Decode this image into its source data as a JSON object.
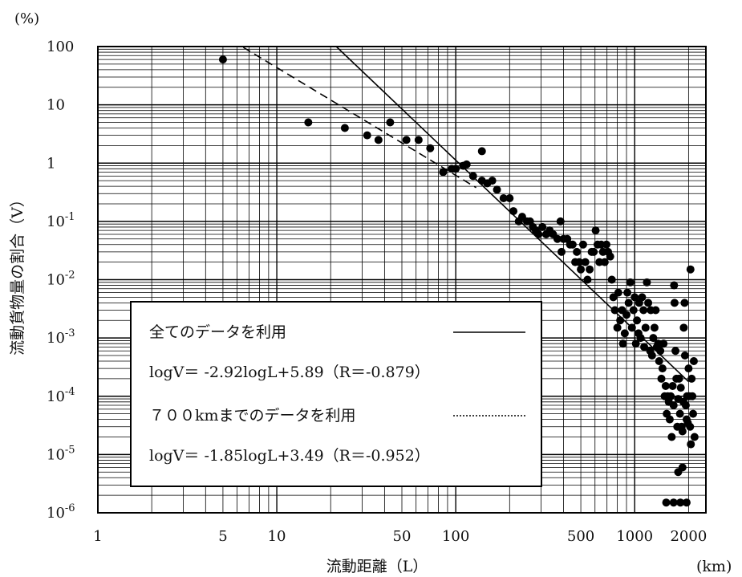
{
  "chart_data": {
    "type": "scatter",
    "x_scale": "log",
    "y_scale": "log",
    "xlim": [
      1,
      2500
    ],
    "ylim": [
      1e-06,
      100
    ],
    "grid": true,
    "xlabel": "流動距離（L）",
    "x_unit": "(km)",
    "ylabel": "流動貨物量の割合（V）",
    "y_unit": "(%)",
    "x_ticks": [
      {
        "value": 1,
        "label": "1"
      },
      {
        "value": 5,
        "label": "5"
      },
      {
        "value": 10,
        "label": "10"
      },
      {
        "value": 50,
        "label": "50"
      },
      {
        "value": 100,
        "label": "100"
      },
      {
        "value": 500,
        "label": "500"
      },
      {
        "value": 1000,
        "label": "1000"
      },
      {
        "value": 2000,
        "label": "2000"
      }
    ],
    "y_ticks": [
      {
        "value": 100,
        "base": "100",
        "exp": ""
      },
      {
        "value": 10,
        "base": "10",
        "exp": ""
      },
      {
        "value": 1,
        "base": "1",
        "exp": ""
      },
      {
        "value": 0.1,
        "base": "10",
        "exp": "-1"
      },
      {
        "value": 0.01,
        "base": "10",
        "exp": "-2"
      },
      {
        "value": 0.001,
        "base": "10",
        "exp": "-3"
      },
      {
        "value": 0.0001,
        "base": "10",
        "exp": "-4"
      },
      {
        "value": 1e-05,
        "base": "10",
        "exp": "-5"
      },
      {
        "value": 1e-06,
        "base": "10",
        "exp": "-6"
      }
    ],
    "legend": {
      "placement": "bottom-left",
      "line1_label": "全てのデータを利用",
      "line1_equation": "logV＝ -2.92logL+5.89（R＝-0.879）",
      "line2_label": "７００kmまでのデータを利用",
      "line2_equation": "logV＝ -1.85logL+3.49（R＝-0.952）"
    },
    "fits": [
      {
        "style": "solid",
        "slope": -2.92,
        "intercept": 5.89,
        "x_range": [
          21,
          2000
        ]
      },
      {
        "style": "dashed",
        "slope": -1.85,
        "intercept": 3.49,
        "x_range": [
          6.5,
          130
        ]
      }
    ],
    "points": [
      [
        5,
        60
      ],
      [
        15,
        5
      ],
      [
        24,
        4
      ],
      [
        32,
        3
      ],
      [
        37,
        2.5
      ],
      [
        43,
        5
      ],
      [
        53,
        2.5
      ],
      [
        62,
        2.5
      ],
      [
        72,
        1.8
      ],
      [
        85,
        0.7
      ],
      [
        95,
        0.8
      ],
      [
        100,
        0.8
      ],
      [
        110,
        0.9
      ],
      [
        115,
        0.95
      ],
      [
        125,
        0.6
      ],
      [
        140,
        0.5
      ],
      [
        140,
        1.6
      ],
      [
        150,
        0.45
      ],
      [
        160,
        0.5
      ],
      [
        170,
        0.35
      ],
      [
        185,
        0.25
      ],
      [
        200,
        0.25
      ],
      [
        210,
        0.15
      ],
      [
        225,
        0.1
      ],
      [
        235,
        0.12
      ],
      [
        250,
        0.1
      ],
      [
        260,
        0.1
      ],
      [
        270,
        0.08
      ],
      [
        280,
        0.07
      ],
      [
        290,
        0.06
      ],
      [
        305,
        0.08
      ],
      [
        320,
        0.06
      ],
      [
        335,
        0.07
      ],
      [
        350,
        0.06
      ],
      [
        370,
        0.05
      ],
      [
        385,
        0.1
      ],
      [
        390,
        0.03
      ],
      [
        400,
        0.05
      ],
      [
        420,
        0.05
      ],
      [
        435,
        0.04
      ],
      [
        450,
        0.04
      ],
      [
        465,
        0.02
      ],
      [
        475,
        0.03
      ],
      [
        490,
        0.02
      ],
      [
        500,
        0.015
      ],
      [
        515,
        0.04
      ],
      [
        530,
        0.02
      ],
      [
        545,
        0.01
      ],
      [
        560,
        0.015
      ],
      [
        575,
        0.03
      ],
      [
        590,
        0.03
      ],
      [
        605,
        0.07
      ],
      [
        620,
        0.04
      ],
      [
        635,
        0.02
      ],
      [
        650,
        0.04
      ],
      [
        665,
        0.03
      ],
      [
        680,
        0.02
      ],
      [
        695,
        0.04
      ],
      [
        710,
        0.03
      ],
      [
        730,
        0.025
      ],
      [
        745,
        0.01
      ],
      [
        760,
        0.005
      ],
      [
        775,
        0.003
      ],
      [
        800,
        0.0015
      ],
      [
        810,
        0.006
      ],
      [
        830,
        0.002
      ],
      [
        850,
        0.003
      ],
      [
        860,
        0.0008
      ],
      [
        880,
        0.0012
      ],
      [
        900,
        0.0025
      ],
      [
        910,
        0.006
      ],
      [
        925,
        0.004
      ],
      [
        945,
        0.009
      ],
      [
        965,
        0.0015
      ],
      [
        985,
        0.003
      ],
      [
        1000,
        0.005
      ],
      [
        1015,
        0.0008
      ],
      [
        1030,
        0.002
      ],
      [
        1050,
        0.0012
      ],
      [
        1060,
        0.004
      ],
      [
        1080,
        0.001
      ],
      [
        1100,
        0.005
      ],
      [
        1120,
        0.003
      ],
      [
        1130,
        0.0007
      ],
      [
        1150,
        0.0015
      ],
      [
        1170,
        0.009
      ],
      [
        1190,
        0.004
      ],
      [
        1220,
        0.0006
      ],
      [
        1230,
        0.003
      ],
      [
        1250,
        0.0005
      ],
      [
        1270,
        0.001
      ],
      [
        1290,
        0.0015
      ],
      [
        1310,
        0.003
      ],
      [
        1330,
        0.0007
      ],
      [
        1350,
        0.0008
      ],
      [
        1370,
        0.0004
      ],
      [
        1390,
        0.0006
      ],
      [
        1410,
        0.0002
      ],
      [
        1430,
        0.0003
      ],
      [
        1450,
        0.0008
      ],
      [
        1470,
        0.0001
      ],
      [
        1490,
        0.00015
      ],
      [
        1510,
        5e-05
      ],
      [
        1530,
        0.0001
      ],
      [
        1550,
        8e-05
      ],
      [
        1570,
        4e-05
      ],
      [
        1590,
        0.0001
      ],
      [
        1610,
        2e-05
      ],
      [
        1630,
        0.00015
      ],
      [
        1650,
        7e-05
      ],
      [
        1660,
        0.008
      ],
      [
        1670,
        0.004
      ],
      [
        1690,
        0.0006
      ],
      [
        1710,
        0.0002
      ],
      [
        1730,
        3e-05
      ],
      [
        1750,
        9e-05
      ],
      [
        1770,
        0.0002
      ],
      [
        1790,
        5e-05
      ],
      [
        1810,
        0.00014
      ],
      [
        1830,
        3e-05
      ],
      [
        1850,
        2.5e-05
      ],
      [
        1870,
        8e-05
      ],
      [
        1880,
        0.0015
      ],
      [
        1900,
        0.004
      ],
      [
        1910,
        0.0005
      ],
      [
        1930,
        7e-05
      ],
      [
        1950,
        4e-05
      ],
      [
        1960,
        0.0001
      ],
      [
        1980,
        3.5e-05
      ],
      [
        2000,
        0.0003
      ],
      [
        2020,
        0.0001
      ],
      [
        2040,
        3e-05
      ],
      [
        2060,
        1.5e-05
      ],
      [
        2080,
        0.0002
      ],
      [
        2100,
        0.0001
      ],
      [
        2120,
        5e-05
      ],
      [
        2140,
        0.0004
      ],
      [
        2160,
        2e-05
      ],
      [
        1750,
        5e-06
      ],
      [
        1850,
        6e-06
      ],
      [
        2050,
        0.015
      ],
      [
        1500,
        1.5e-06
      ],
      [
        1650,
        1.5e-06
      ],
      [
        1800,
        1.5e-06
      ],
      [
        1950,
        1.5e-06
      ]
    ]
  }
}
